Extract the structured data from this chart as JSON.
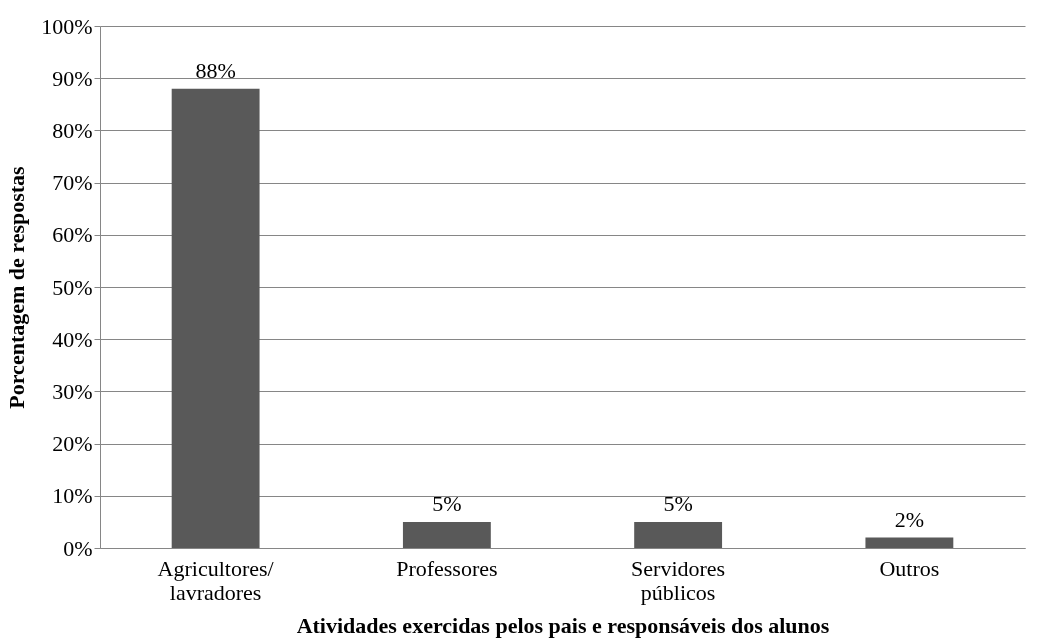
{
  "chart_data": {
    "type": "bar",
    "xlabel": "Atividades exercidas pelos pais e responsáveis dos alunos",
    "ylabel": "Porcentagem de respostas",
    "categories": [
      "Agricultores/ lavradores",
      "Professores",
      "Servidores públicos",
      "Outros"
    ],
    "values": [
      88,
      5,
      5,
      2
    ],
    "value_labels": [
      "88%",
      "5%",
      "5%",
      "2%"
    ],
    "color": "#595959",
    "ylim": [
      0,
      100
    ],
    "yticks": [
      {
        "value": 0,
        "label": "0%"
      },
      {
        "value": 10,
        "label": "10%"
      },
      {
        "value": 20,
        "label": "20%"
      },
      {
        "value": 30,
        "label": "30%"
      },
      {
        "value": 40,
        "label": "40%"
      },
      {
        "value": 50,
        "label": "50%"
      },
      {
        "value": 60,
        "label": "60%"
      },
      {
        "value": 70,
        "label": "70%"
      },
      {
        "value": 80,
        "label": "80%"
      },
      {
        "value": 90,
        "label": "90%"
      },
      {
        "value": 100,
        "label": "100%"
      }
    ],
    "grid": "y"
  }
}
